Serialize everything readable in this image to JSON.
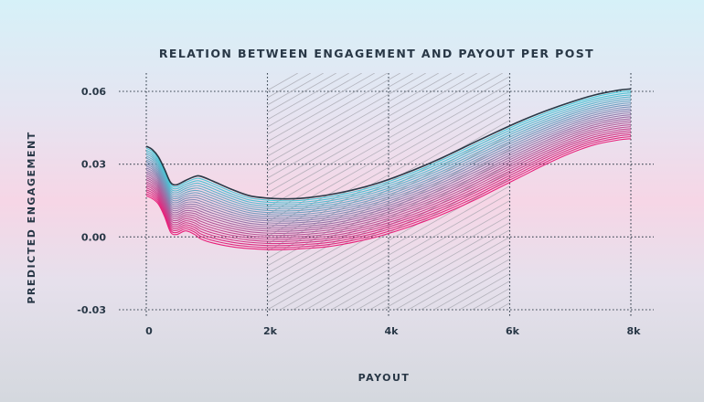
{
  "chart_data": {
    "type": "line",
    "title": "RELATION BETWEEN ENGAGEMENT AND PAYOUT PER POST",
    "xlabel": "PAYOUT",
    "ylabel": "PREDICTED ENGAGEMENT",
    "xlim": [
      0,
      8000
    ],
    "ylim": [
      -0.03,
      0.06
    ],
    "x_ticks": [
      {
        "value": 0,
        "label": "0"
      },
      {
        "value": 2000,
        "label": "2k"
      },
      {
        "value": 4000,
        "label": "4k"
      },
      {
        "value": 6000,
        "label": "6k"
      },
      {
        "value": 8000,
        "label": "8k"
      }
    ],
    "y_ticks": [
      {
        "value": -0.03,
        "label": "-0.03"
      },
      {
        "value": 0.0,
        "label": "0.00"
      },
      {
        "value": 0.03,
        "label": "0.03"
      },
      {
        "value": 0.06,
        "label": "0.06"
      }
    ],
    "grid": true,
    "colors": {
      "upper": "#40d0dc",
      "lower": "#e8207a",
      "outline": "#2a3845",
      "hatch": "#a3a3ab"
    },
    "series": [
      {
        "name": "",
        "x": [
          0,
          100,
          200,
          300,
          400,
          500,
          650,
          800,
          900,
          1100,
          1400,
          1700,
          2000,
          2300,
          2600,
          3000,
          3400,
          3800,
          4200,
          4600,
          5000,
          5400,
          5800,
          6200,
          6600,
          7000,
          7400,
          7800,
          8000
        ],
        "upper": [
          0.0374,
          0.036,
          0.033,
          0.028,
          0.0225,
          0.0215,
          0.0233,
          0.0249,
          0.025,
          0.023,
          0.0197,
          0.017,
          0.016,
          0.0157,
          0.016,
          0.0173,
          0.0193,
          0.022,
          0.0255,
          0.0295,
          0.034,
          0.0388,
          0.0435,
          0.048,
          0.052,
          0.0555,
          0.0585,
          0.0605,
          0.061
        ],
        "lower": [
          0.017,
          0.0158,
          0.0135,
          0.0085,
          0.002,
          0.001,
          0.0025,
          0.001,
          -0.0008,
          -0.0025,
          -0.004,
          -0.0048,
          -0.0052,
          -0.0052,
          -0.0048,
          -0.004,
          -0.0023,
          0.0,
          0.003,
          0.0065,
          0.0105,
          0.015,
          0.02,
          0.025,
          0.03,
          0.0345,
          0.038,
          0.04,
          0.0405
        ]
      }
    ],
    "hatch_region": {
      "x_start": 2000,
      "x_end": 6000
    }
  }
}
